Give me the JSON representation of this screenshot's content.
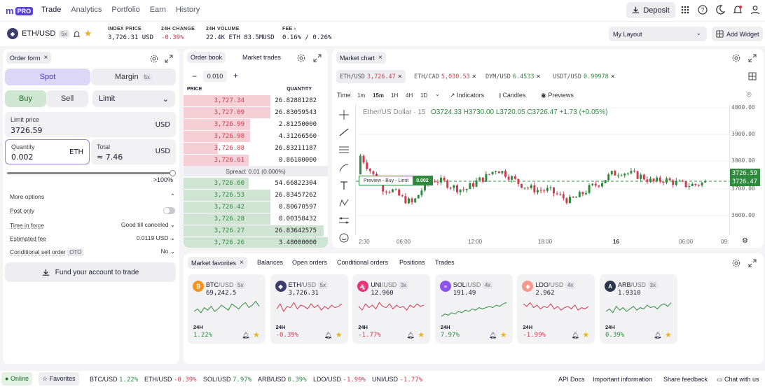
{
  "brand": {
    "logo": "m",
    "badge": "PRO"
  },
  "nav": {
    "items": [
      "Trade",
      "Analytics",
      "Portfolio",
      "Earn",
      "History"
    ]
  },
  "header": {
    "deposit_label": "Deposit"
  },
  "ticker": {
    "pair": "ETH/USD",
    "leverage": "5x",
    "index_price_label": "INDEX PRICE",
    "index_price": "3,726.31",
    "index_price_unit": "USD",
    "change_label": "24H CHANGE",
    "change": "-0.39%",
    "volume_label": "24H VOLUME",
    "volume_eth": "22.4K",
    "volume_eth_unit": "ETH",
    "volume_usd": "83.5M",
    "volume_usd_unit": "USD",
    "fee_label": "FEE",
    "fee": "0.16% / 0.26%"
  },
  "layout": {
    "selected": "My Layout",
    "add_widget": "Add Widget"
  },
  "order_form": {
    "tab": "Order form",
    "spot": "Spot",
    "margin": "Margin",
    "margin_lev": "5x",
    "buy": "Buy",
    "sell": "Sell",
    "order_type": "Limit",
    "limit_price_label": "Limit price",
    "limit_price": "3726.59",
    "limit_price_unit": "USD",
    "quantity_label": "Quantity",
    "quantity": "0.002",
    "quantity_unit": "ETH",
    "total_label": "Total",
    "total": "≈ 7.46",
    "total_unit": "USD",
    "slider_label": ">100%",
    "more_options": "More options",
    "post_only": "Post only",
    "time_in_force_label": "Time in force",
    "time_in_force": "Good till canceled",
    "est_fee_label": "Estimated fee",
    "est_fee": "0.0119 USD",
    "cond_sell_label": "Conditional sell order",
    "cond_sell_badge": "OTO",
    "cond_sell": "No",
    "fund_button": "Fund your account to trade"
  },
  "order_book": {
    "tab_book": "Order book",
    "tab_trades": "Market trades",
    "step": "0.010",
    "price_header": "PRICE",
    "qty_header": "QUANTITY",
    "asks": [
      {
        "price": "3,727.34",
        "qty": "26.82881282",
        "depth": 0.6
      },
      {
        "price": "3,727.09",
        "qty": "26.83059543",
        "depth": 0.6
      },
      {
        "price": "3,726.99",
        "qty": "2.81250000",
        "depth": 0.46
      },
      {
        "price": "3,726.98",
        "qty": "4.31266560",
        "depth": 0.46
      },
      {
        "price": "3,726.88",
        "qty": "26.83211187",
        "depth": 0.24
      },
      {
        "price": "3,726.61",
        "qty": "0.86100000",
        "depth": 0.45
      }
    ],
    "spread": "Spread: 0.01 (0.000%)",
    "bids": [
      {
        "price": "3,726.60",
        "qty": "54.66822304",
        "depth": 0.45
      },
      {
        "price": "3,726.53",
        "qty": "26.83457262",
        "depth": 0.6
      },
      {
        "price": "3,726.42",
        "qty": "0.80670597",
        "depth": 0.6
      },
      {
        "price": "3,726.28",
        "qty": "0.00358432",
        "depth": 0.6
      },
      {
        "price": "3,726.27",
        "qty": "26.83642575",
        "depth": 0.97
      },
      {
        "price": "3,726.26",
        "qty": "3.48000000",
        "depth": 1.0
      }
    ]
  },
  "market_chart": {
    "tab": "Market chart",
    "pairs": [
      {
        "pair": "ETH/USD",
        "price": "3,726.47",
        "color": "#d33b4e"
      },
      {
        "pair": "ETH/CAD",
        "price": "5,030.53",
        "color": "#d33b4e"
      },
      {
        "pair": "DYM/USD",
        "price": "6.4533",
        "color": "#2e8b3e"
      },
      {
        "pair": "USDT/USD",
        "price": "0.99978",
        "color": "#2e8b3e"
      }
    ],
    "time_label": "Time",
    "timeframes": [
      "1m",
      "15m",
      "1H",
      "4H",
      "1D"
    ],
    "selected_tf": "15m",
    "indicators": "Indicators",
    "candles": "Candles",
    "previews": "Previews",
    "legend_name": "Ether/US Dollar · 15",
    "ohlc": "O3724.33 H3730.00 L3720.05 C3726.47 +1.73 (+0.05%)",
    "preview_label": "Preview - Buy - Limit",
    "preview_qty": "0.002",
    "y_ticks": [
      "4000.00",
      "3900.00",
      "3800.00",
      "3700.00",
      "3600.00"
    ],
    "x_ticks": [
      "2:30",
      "06:00",
      "12:00",
      "18:00",
      "16",
      "06:00",
      "09:"
    ],
    "price_tags": [
      "3726.59",
      "3726.47"
    ]
  },
  "bottom_panel": {
    "tabs": [
      "Market favorites",
      "Balances",
      "Open orders",
      "Conditional orders",
      "Positions",
      "Trades"
    ],
    "cards": [
      {
        "sym": "BTC",
        "quote": "/USD",
        "lev": "5x",
        "price": "69,242.5",
        "h": "24H",
        "change": "1.22%",
        "color": "#2e8b3e",
        "coin_color": "#f7931a",
        "coin": "₿",
        "spark": [
          10,
          12,
          9,
          13,
          11,
          14,
          10,
          12,
          15,
          13,
          11,
          16,
          14,
          12,
          15,
          17,
          13,
          15,
          18,
          14
        ]
      },
      {
        "sym": "ETH",
        "quote": "/USD",
        "lev": "5x",
        "price": "3,726.31",
        "h": "24H",
        "change": "-0.39%",
        "color": "#d33b4e",
        "coin_color": "#3c3c6e",
        "coin": "◆",
        "spark": [
          12,
          16,
          10,
          14,
          13,
          17,
          12,
          15,
          14,
          12,
          16,
          13,
          15,
          11,
          14,
          12,
          15,
          13,
          14,
          16
        ]
      },
      {
        "sym": "UNI",
        "quote": "/USD",
        "lev": "3x",
        "price": "12.960",
        "h": "24H",
        "change": "-1.77%",
        "color": "#d33b4e",
        "coin_color": "#e6337a",
        "coin": "🦄",
        "spark": [
          14,
          11,
          16,
          13,
          15,
          12,
          17,
          14,
          13,
          16,
          12,
          15,
          13,
          14,
          11,
          15,
          13,
          16,
          14,
          15
        ]
      },
      {
        "sym": "SOL",
        "quote": "/USD",
        "lev": "4x",
        "price": "191.49",
        "h": "24H",
        "change": "7.97%",
        "color": "#2e8b3e",
        "coin_color": "#8d53f0",
        "coin": "≡",
        "spark": [
          6,
          8,
          7,
          9,
          8,
          10,
          9,
          11,
          10,
          12,
          11,
          13,
          12,
          13,
          14,
          13,
          15,
          14,
          16,
          17
        ]
      },
      {
        "sym": "LDO",
        "quote": "/USD",
        "lev": "4x",
        "price": "2.962",
        "h": "24H",
        "change": "-1.99%",
        "color": "#d33b4e",
        "coin_color": "#f69988",
        "coin": "◈",
        "spark": [
          16,
          14,
          17,
          13,
          15,
          12,
          14,
          13,
          16,
          12,
          14,
          11,
          13,
          14,
          12,
          15,
          11,
          13,
          12,
          14
        ]
      },
      {
        "sym": "ARB",
        "quote": "/USD",
        "lev": "3x",
        "price": "1.9310",
        "h": "24H",
        "change": "0.39%",
        "color": "#2e8b3e",
        "coin_color": "#2d374b",
        "coin": "A",
        "spark": [
          10,
          12,
          9,
          14,
          11,
          13,
          10,
          12,
          14,
          11,
          13,
          12,
          15,
          13,
          14,
          12,
          15,
          16,
          14,
          17
        ]
      }
    ]
  },
  "status": {
    "online": "Online",
    "favorites": "Favorites",
    "tickers": [
      {
        "pair": "BTC/USD",
        "chg": "1.22%",
        "color": "#2e8b3e"
      },
      {
        "pair": "ETH/USD",
        "chg": "-0.39%",
        "color": "#d33b4e"
      },
      {
        "pair": "SOL/USD",
        "chg": "7.97%",
        "color": "#2e8b3e"
      },
      {
        "pair": "ARB/USD",
        "chg": "0.39%",
        "color": "#2e8b3e"
      },
      {
        "pair": "LDO/USD",
        "chg": "-1.99%",
        "color": "#d33b4e"
      },
      {
        "pair": "UNI/USD",
        "chg": "-1.77%",
        "color": "#d33b4e"
      }
    ],
    "api_docs": "API Docs",
    "important": "Important information",
    "feedback": "Share feedback",
    "chat": "Chat with us"
  }
}
